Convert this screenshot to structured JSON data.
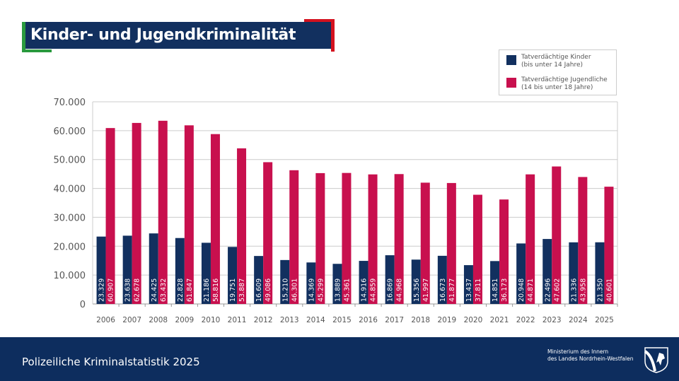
{
  "title": "Kinder- und Jugendkriminalität",
  "footer": {
    "title": "Polizeiliche Kriminalstatistik 2025",
    "ministry_line1": "Ministerium des Innern",
    "ministry_line2": "des Landes Nordrhein-Westfalen"
  },
  "colors": {
    "kinder": "#12305f",
    "jugendliche": "#c8104e",
    "title_bg": "#12305f",
    "accent_green": "#2a9a3e",
    "accent_red": "#d4121f"
  },
  "chart_data": {
    "type": "bar",
    "categories": [
      "2006",
      "2007",
      "2008",
      "2009",
      "2010",
      "2011",
      "2012",
      "2013",
      "2014",
      "2015",
      "2016",
      "2017",
      "2018",
      "2019",
      "2020",
      "2021",
      "2022",
      "2023",
      "2024",
      "2025"
    ],
    "series": [
      {
        "name": "Tatverdächtige Kinder",
        "name_line2": "(bis unter 14 Jahre)",
        "color": "#12305f",
        "values": [
          23329,
          23638,
          24425,
          22828,
          21186,
          19751,
          16609,
          15210,
          14369,
          13889,
          14916,
          16869,
          15356,
          16673,
          13437,
          14851,
          20948,
          22496,
          21336,
          21350
        ],
        "labels": [
          "23.329",
          "23.638",
          "24.425",
          "22.828",
          "21.186",
          "19.751",
          "16.609",
          "15.210",
          "14.369",
          "13.889",
          "14.916",
          "16.869",
          "15.356",
          "16.673",
          "13.437",
          "14.851",
          "20.948",
          "22.496",
          "21.336",
          "21.350"
        ]
      },
      {
        "name": "Tatverdächtige Jugendliche",
        "name_line2": "(14 bis unter 18 Jahre)",
        "color": "#c8104e",
        "values": [
          60907,
          62678,
          63432,
          61847,
          58816,
          53887,
          49086,
          46301,
          45299,
          45361,
          44859,
          44968,
          41997,
          41877,
          37811,
          36173,
          44871,
          47602,
          43958,
          40601
        ],
        "labels": [
          "60.907",
          "62.678",
          "63.432",
          "61.847",
          "58.816",
          "53.887",
          "49.086",
          "46.301",
          "45.299",
          "45.361",
          "44.859",
          "44.968",
          "41.997",
          "41.877",
          "37.811",
          "36.173",
          "44.871",
          "47.602",
          "43.958",
          "40.601"
        ]
      }
    ],
    "yticks": [
      "0",
      "10.000",
      "20.000",
      "30.000",
      "40.000",
      "50.000",
      "60.000",
      "70.000"
    ],
    "ylim": [
      0,
      70000
    ],
    "grid": true,
    "legend": "top-right"
  }
}
